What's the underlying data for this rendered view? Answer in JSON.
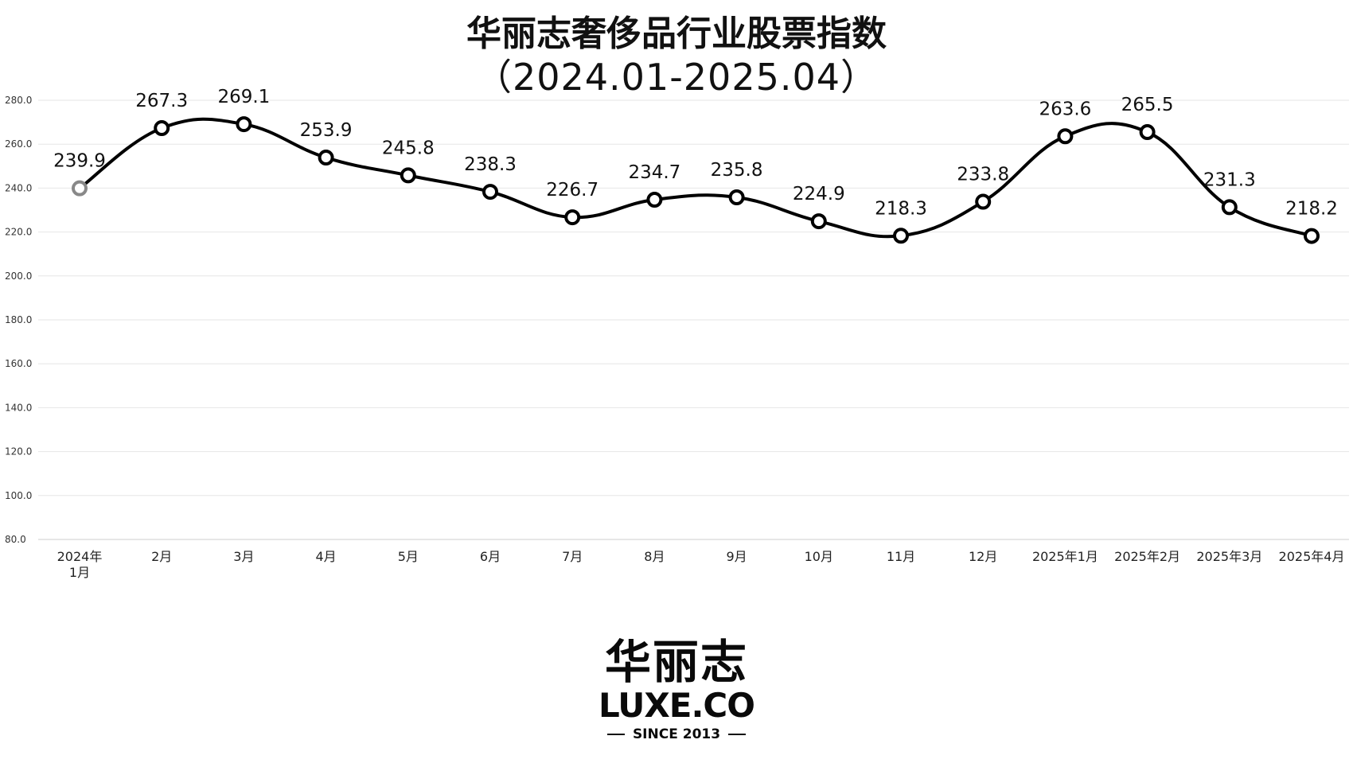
{
  "title_line1": "华丽志奢侈品行业股票指数",
  "title_line2": "（2024.01-2025.04）",
  "chart_data": {
    "type": "line",
    "title": "华丽志奢侈品行业股票指数（2024.01-2025.04）",
    "xlabel": "",
    "ylabel": "",
    "categories": [
      "2024年1月",
      "2月",
      "3月",
      "4月",
      "5月",
      "6月",
      "7月",
      "8月",
      "9月",
      "10月",
      "11月",
      "12月",
      "2025年1月",
      "2025年2月",
      "2025年3月",
      "2025年4月"
    ],
    "category_display": [
      [
        "2024年",
        "1月"
      ],
      [
        "2月"
      ],
      [
        "3月"
      ],
      [
        "4月"
      ],
      [
        "5月"
      ],
      [
        "6月"
      ],
      [
        "7月"
      ],
      [
        "8月"
      ],
      [
        "9月"
      ],
      [
        "10月"
      ],
      [
        "11月"
      ],
      [
        "12月"
      ],
      [
        "2025年1月"
      ],
      [
        "2025年2月"
      ],
      [
        "2025年3月"
      ],
      [
        "2025年4月"
      ]
    ],
    "values": [
      239.9,
      267.3,
      269.1,
      253.9,
      245.8,
      238.3,
      226.7,
      234.7,
      235.8,
      224.9,
      218.3,
      233.8,
      263.6,
      265.5,
      231.3,
      218.2
    ],
    "value_labels": [
      "239.9",
      "267.3",
      "269.1",
      "253.9",
      "245.8",
      "238.3",
      "226.7",
      "234.7",
      "235.8",
      "224.9",
      "218.3",
      "233.8",
      "263.6",
      "265.5",
      "231.3",
      "218.2"
    ],
    "yticks": [
      "80.0",
      "100.0",
      "120.0",
      "140.0",
      "160.0",
      "180.0",
      "200.0",
      "220.0",
      "240.0",
      "260.0",
      "280.0"
    ],
    "ylim": [
      80,
      280
    ],
    "grid": true,
    "legend": "none",
    "smooth": true,
    "colors": {
      "line": "#000000",
      "marker_fill": "#ffffff",
      "marker_stroke": "#000000",
      "first_marker_stroke": "#888888",
      "grid": "#e6e6e6"
    }
  },
  "logo": {
    "cn": "华丽志",
    "en": "LUXE.CO",
    "since": "SINCE 2013"
  }
}
